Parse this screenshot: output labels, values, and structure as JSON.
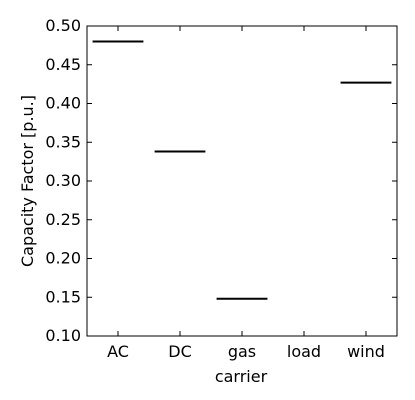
{
  "chart_data": {
    "type": "box",
    "categories": [
      "AC",
      "DC",
      "gas",
      "load",
      "wind"
    ],
    "values": [
      0.48,
      0.338,
      0.148,
      null,
      0.427
    ],
    "xlabel": "carrier",
    "ylabel": "Capacity Factor [p.u.]",
    "ylim": [
      0.1,
      0.5
    ],
    "yticks": [
      "0.10",
      "0.15",
      "0.20",
      "0.25",
      "0.30",
      "0.35",
      "0.40",
      "0.45",
      "0.50"
    ],
    "grid": false,
    "colors": {
      "axis": "#000000",
      "median": "#000000"
    }
  }
}
